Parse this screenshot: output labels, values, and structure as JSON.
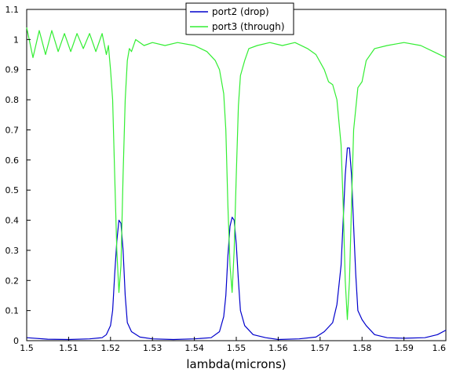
{
  "chart_data": {
    "type": "line",
    "xlabel": "lambda(microns)",
    "ylabel": "",
    "title": "",
    "xlim": [
      1.5,
      1.6
    ],
    "ylim": [
      0,
      1.1
    ],
    "x_ticks": [
      "1.5",
      "1.51",
      "1.52",
      "1.53",
      "1.54",
      "1.55",
      "1.56",
      "1.57",
      "1.58",
      "1.59",
      "1.6"
    ],
    "y_ticks": [
      "0",
      "0.1",
      "0.2",
      "0.3",
      "0.4",
      "0.5",
      "0.6",
      "0.7",
      "0.8",
      "0.9",
      "1",
      "1.1"
    ],
    "legend_position": "top-center",
    "grid": false,
    "series": [
      {
        "name": "port2 (drop)",
        "color": "#0000cc",
        "points": [
          [
            1.5,
            0.01
          ],
          [
            1.505,
            0.005
          ],
          [
            1.51,
            0.004
          ],
          [
            1.515,
            0.006
          ],
          [
            1.518,
            0.01
          ],
          [
            1.519,
            0.02
          ],
          [
            1.52,
            0.05
          ],
          [
            1.5205,
            0.1
          ],
          [
            1.521,
            0.22
          ],
          [
            1.5215,
            0.33
          ],
          [
            1.522,
            0.4
          ],
          [
            1.5225,
            0.39
          ],
          [
            1.523,
            0.3
          ],
          [
            1.5235,
            0.15
          ],
          [
            1.524,
            0.06
          ],
          [
            1.525,
            0.03
          ],
          [
            1.527,
            0.012
          ],
          [
            1.53,
            0.006
          ],
          [
            1.535,
            0.004
          ],
          [
            1.54,
            0.006
          ],
          [
            1.544,
            0.01
          ],
          [
            1.546,
            0.03
          ],
          [
            1.547,
            0.08
          ],
          [
            1.5475,
            0.15
          ],
          [
            1.548,
            0.28
          ],
          [
            1.5485,
            0.38
          ],
          [
            1.549,
            0.41
          ],
          [
            1.5495,
            0.4
          ],
          [
            1.55,
            0.32
          ],
          [
            1.5505,
            0.2
          ],
          [
            1.551,
            0.1
          ],
          [
            1.552,
            0.05
          ],
          [
            1.554,
            0.02
          ],
          [
            1.557,
            0.01
          ],
          [
            1.56,
            0.004
          ],
          [
            1.565,
            0.006
          ],
          [
            1.569,
            0.012
          ],
          [
            1.571,
            0.03
          ],
          [
            1.573,
            0.06
          ],
          [
            1.574,
            0.12
          ],
          [
            1.575,
            0.25
          ],
          [
            1.5755,
            0.4
          ],
          [
            1.576,
            0.55
          ],
          [
            1.5765,
            0.64
          ],
          [
            1.577,
            0.64
          ],
          [
            1.5775,
            0.55
          ],
          [
            1.578,
            0.38
          ],
          [
            1.5785,
            0.22
          ],
          [
            1.579,
            0.1
          ],
          [
            1.58,
            0.07
          ],
          [
            1.581,
            0.05
          ],
          [
            1.583,
            0.02
          ],
          [
            1.586,
            0.01
          ],
          [
            1.59,
            0.008
          ],
          [
            1.595,
            0.01
          ],
          [
            1.598,
            0.02
          ],
          [
            1.6,
            0.035
          ]
        ]
      },
      {
        "name": "port3 (through)",
        "color": "#33ee33",
        "points": [
          [
            1.5,
            1.04
          ],
          [
            1.5015,
            0.94
          ],
          [
            1.503,
            1.03
          ],
          [
            1.5045,
            0.95
          ],
          [
            1.506,
            1.03
          ],
          [
            1.5075,
            0.96
          ],
          [
            1.509,
            1.02
          ],
          [
            1.5105,
            0.96
          ],
          [
            1.512,
            1.02
          ],
          [
            1.5135,
            0.97
          ],
          [
            1.515,
            1.02
          ],
          [
            1.5165,
            0.96
          ],
          [
            1.518,
            1.02
          ],
          [
            1.519,
            0.95
          ],
          [
            1.5195,
            0.98
          ],
          [
            1.52,
            0.9
          ],
          [
            1.5205,
            0.8
          ],
          [
            1.521,
            0.55
          ],
          [
            1.5215,
            0.3
          ],
          [
            1.522,
            0.16
          ],
          [
            1.5225,
            0.25
          ],
          [
            1.523,
            0.55
          ],
          [
            1.5235,
            0.8
          ],
          [
            1.524,
            0.93
          ],
          [
            1.5245,
            0.97
          ],
          [
            1.525,
            0.96
          ],
          [
            1.526,
            1.0
          ],
          [
            1.528,
            0.98
          ],
          [
            1.53,
            0.99
          ],
          [
            1.533,
            0.98
          ],
          [
            1.536,
            0.99
          ],
          [
            1.54,
            0.98
          ],
          [
            1.543,
            0.96
          ],
          [
            1.545,
            0.93
          ],
          [
            1.546,
            0.9
          ],
          [
            1.547,
            0.82
          ],
          [
            1.5475,
            0.7
          ],
          [
            1.548,
            0.45
          ],
          [
            1.5485,
            0.25
          ],
          [
            1.549,
            0.16
          ],
          [
            1.5495,
            0.3
          ],
          [
            1.55,
            0.55
          ],
          [
            1.5505,
            0.78
          ],
          [
            1.551,
            0.88
          ],
          [
            1.552,
            0.93
          ],
          [
            1.553,
            0.97
          ],
          [
            1.555,
            0.98
          ],
          [
            1.558,
            0.99
          ],
          [
            1.561,
            0.98
          ],
          [
            1.564,
            0.99
          ],
          [
            1.567,
            0.97
          ],
          [
            1.569,
            0.95
          ],
          [
            1.571,
            0.9
          ],
          [
            1.572,
            0.86
          ],
          [
            1.573,
            0.85
          ],
          [
            1.574,
            0.8
          ],
          [
            1.575,
            0.65
          ],
          [
            1.5755,
            0.45
          ],
          [
            1.576,
            0.2
          ],
          [
            1.5765,
            0.07
          ],
          [
            1.577,
            0.2
          ],
          [
            1.5775,
            0.45
          ],
          [
            1.578,
            0.7
          ],
          [
            1.579,
            0.84
          ],
          [
            1.58,
            0.86
          ],
          [
            1.581,
            0.93
          ],
          [
            1.583,
            0.97
          ],
          [
            1.586,
            0.98
          ],
          [
            1.59,
            0.99
          ],
          [
            1.594,
            0.98
          ],
          [
            1.597,
            0.96
          ],
          [
            1.6,
            0.94
          ]
        ]
      }
    ]
  }
}
